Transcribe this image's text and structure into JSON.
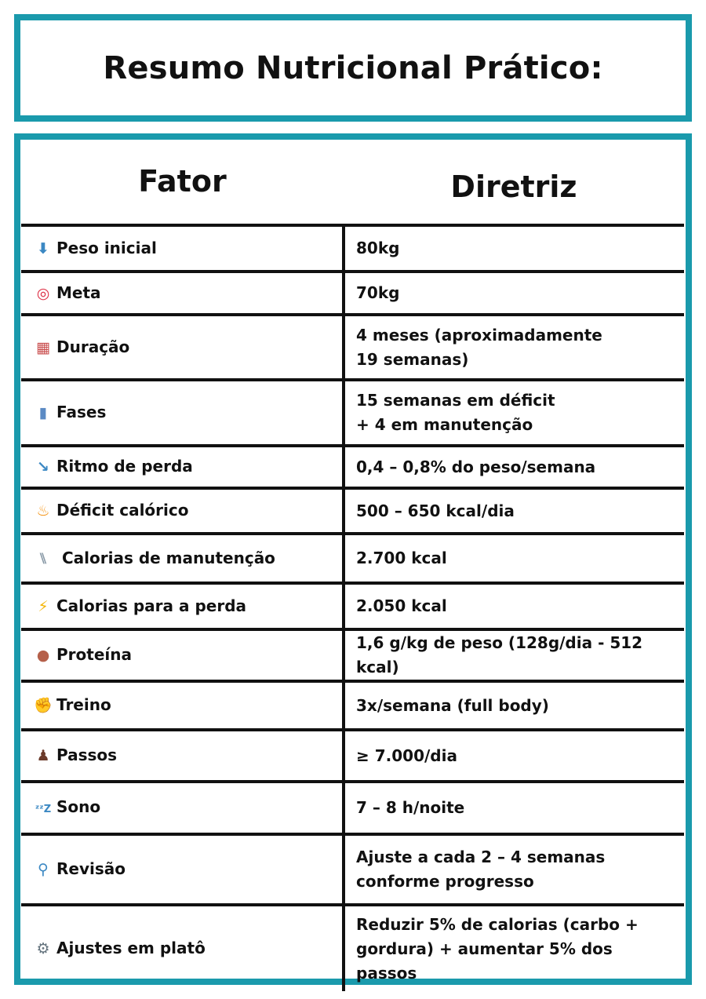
{
  "title": "Resumo Nutricional Prático:",
  "accent_color": "#1a9aac",
  "headers": {
    "factor": "Fator",
    "guideline": "Diretriz"
  },
  "rows": [
    {
      "icon": "down-arrow-icon",
      "glyph": "⬇",
      "color": "#3b88c3",
      "factor": "Peso inicial",
      "guideline": "80kg"
    },
    {
      "icon": "target-icon",
      "glyph": "◎",
      "color": "#dd2e44",
      "factor": "Meta",
      "guideline": "70kg"
    },
    {
      "icon": "calendar-icon",
      "glyph": "▦",
      "color": "#c94d4d",
      "factor": "Duração",
      "guideline": "4 meses (aproximadamente\n19 semanas)"
    },
    {
      "icon": "bar-chart-icon",
      "glyph": "▮",
      "color": "#5b8ac4",
      "factor": "Fases",
      "guideline": "15 semanas em déficit\n+ 4 em manutenção"
    },
    {
      "icon": "chart-decreasing-icon",
      "glyph": "↘",
      "color": "#3b88c3",
      "factor": "Ritmo de perda",
      "guideline": "0,4 – 0,8% do peso/semana"
    },
    {
      "icon": "fire-icon",
      "glyph": "♨",
      "color": "#f4900c",
      "factor": "Déficit calórico",
      "guideline": "500 – 650 kcal/dia"
    },
    {
      "icon": "fork-knife-plate-icon",
      "glyph": "⑊",
      "color": "#8899a6",
      "factor": " Calorias de manutenção",
      "guideline": " 2.700 kcal"
    },
    {
      "icon": "lightning-icon",
      "glyph": "⚡",
      "color": "#f4b400",
      "factor": "Calorias para a perda",
      "guideline": "2.050 kcal"
    },
    {
      "icon": "beans-icon",
      "glyph": "●",
      "color": "#b5604a",
      "factor": "Proteína",
      "guideline": "1,6 g/kg de peso (128g/dia - 512 kcal)"
    },
    {
      "icon": "flexed-biceps-icon",
      "glyph": "✊",
      "color": "#f6c33c",
      "factor": "Treino",
      "guideline": "3x/semana (full body)"
    },
    {
      "icon": "footprints-icon",
      "glyph": "♟",
      "color": "#6b3a2a",
      "factor": "Passos",
      "guideline": "≥ 7.000/dia"
    },
    {
      "icon": "zzz-icon",
      "glyph": "ᶻᶻZ",
      "color": "#3b88c3",
      "factor": "Sono",
      "guideline": "7 – 8 h/noite"
    },
    {
      "icon": "magnifier-icon",
      "glyph": "⚲",
      "color": "#3b88c3",
      "factor": "Revisão",
      "guideline": "Ajuste a cada 2 – 4 semanas\nconforme progresso"
    },
    {
      "icon": "gear-icon",
      "glyph": "⚙",
      "color": "#66757f",
      "factor": "Ajustes em platô",
      "guideline": "Reduzir 5% de calorias (carbo +\ngordura) + aumentar 5% dos\npassos"
    }
  ]
}
